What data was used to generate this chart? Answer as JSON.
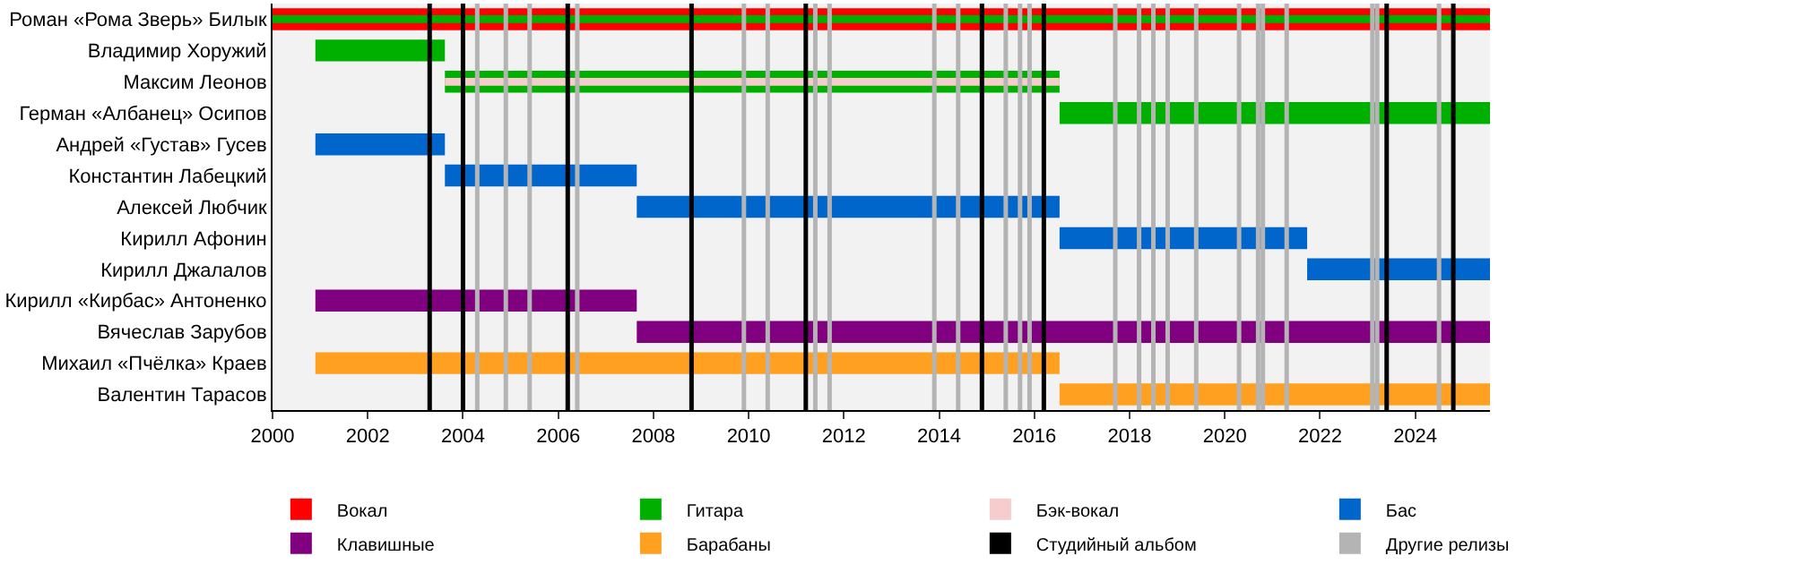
{
  "chart_data": {
    "type": "bar",
    "orientation": "horizontal",
    "categories": [
      "Роман «Рома Зверь» Билык",
      "Владимир Хоружий",
      "Максим Леонов",
      "Герман «Албанец» Осипов",
      "Андрей «Густав» Гусев",
      "Константин Лабецкий",
      "Алексей Любчик",
      "Кирилл Афонин",
      "Кирилл Джалалов",
      "Кирилл «Кирбас» Антоненко",
      "Вячеслав Зарубов",
      "Михаил «Пчёлка» Краев",
      "Валентин Тарасов"
    ],
    "series": [
      {
        "name": "Вокал",
        "color": "#ff0000",
        "base": [
          2000,
          null,
          null,
          null,
          null,
          null,
          null,
          null,
          null,
          null,
          null,
          null,
          null
        ],
        "values": [
          25.57,
          null,
          null,
          null,
          null,
          null,
          null,
          null,
          null,
          null,
          null,
          null,
          null
        ]
      },
      {
        "name": "Гитара",
        "color": "#00b000",
        "base": [
          2000,
          2000.9,
          2003.62,
          2016.53,
          null,
          null,
          null,
          null,
          null,
          null,
          null,
          null,
          null
        ],
        "values": [
          25.57,
          2.72,
          12.91,
          9.04,
          null,
          null,
          null,
          null,
          null,
          null,
          null,
          null,
          null
        ]
      },
      {
        "name": "Бэк-вокал",
        "color": "#f6cccc",
        "base": [
          null,
          null,
          2003.62,
          null,
          null,
          null,
          null,
          null,
          null,
          null,
          null,
          null,
          null
        ],
        "values": [
          null,
          null,
          12.91,
          null,
          null,
          null,
          null,
          null,
          null,
          null,
          null,
          null,
          null
        ]
      },
      {
        "name": "Бас",
        "color": "#0066cc",
        "base": [
          null,
          null,
          null,
          null,
          2000.9,
          2003.62,
          2007.65,
          2016.53,
          2021.73,
          null,
          null,
          null,
          null
        ],
        "values": [
          null,
          null,
          null,
          null,
          2.72,
          4.03,
          8.88,
          5.2,
          3.84,
          null,
          null,
          null,
          null
        ]
      },
      {
        "name": "Клавишные",
        "color": "#800080",
        "base": [
          null,
          null,
          null,
          null,
          null,
          null,
          null,
          null,
          null,
          2000.9,
          2007.65,
          null,
          null
        ],
        "values": [
          null,
          null,
          null,
          null,
          null,
          null,
          null,
          null,
          null,
          6.75,
          17.92,
          null,
          null
        ]
      },
      {
        "name": "Барабаны",
        "color": "#ffa020",
        "base": [
          null,
          null,
          null,
          null,
          null,
          null,
          null,
          null,
          null,
          null,
          null,
          2000.9,
          2016.53
        ],
        "values": [
          null,
          null,
          null,
          null,
          null,
          null,
          null,
          null,
          null,
          null,
          null,
          15.63,
          9.04
        ]
      }
    ],
    "ref_lines": [
      {
        "axis": "x",
        "value": 2003.3,
        "label": "Студийный альбом",
        "color": "#000000"
      },
      {
        "axis": "x",
        "value": 2004.0,
        "color": "#000000"
      },
      {
        "axis": "x",
        "value": 2006.2,
        "color": "#000000"
      },
      {
        "axis": "x",
        "value": 2008.8,
        "color": "#000000"
      },
      {
        "axis": "x",
        "value": 2011.2,
        "color": "#000000"
      },
      {
        "axis": "x",
        "value": 2014.9,
        "color": "#000000"
      },
      {
        "axis": "x",
        "value": 2016.2,
        "color": "#000000"
      },
      {
        "axis": "x",
        "value": 2023.4,
        "color": "#000000"
      },
      {
        "axis": "x",
        "value": 2024.8,
        "color": "#000000"
      },
      {
        "axis": "x",
        "value": 2004.3,
        "label": "Другие релизы",
        "color": "#b4b4b4"
      },
      {
        "axis": "x",
        "value": 2004.9,
        "color": "#b4b4b4"
      },
      {
        "axis": "x",
        "value": 2005.4,
        "color": "#b4b4b4"
      },
      {
        "axis": "x",
        "value": 2006.4,
        "color": "#b4b4b4"
      },
      {
        "axis": "x",
        "value": 2009.9,
        "color": "#b4b4b4"
      },
      {
        "axis": "x",
        "value": 2010.4,
        "color": "#b4b4b4"
      },
      {
        "axis": "x",
        "value": 2011.4,
        "color": "#b4b4b4"
      },
      {
        "axis": "x",
        "value": 2011.7,
        "color": "#b4b4b4"
      },
      {
        "axis": "x",
        "value": 2013.9,
        "color": "#b4b4b4"
      },
      {
        "axis": "x",
        "value": 2014.4,
        "color": "#b4b4b4"
      },
      {
        "axis": "x",
        "value": 2015.4,
        "color": "#b4b4b4"
      },
      {
        "axis": "x",
        "value": 2015.7,
        "color": "#b4b4b4"
      },
      {
        "axis": "x",
        "value": 2015.9,
        "color": "#b4b4b4"
      },
      {
        "axis": "x",
        "value": 2017.7,
        "color": "#b4b4b4"
      },
      {
        "axis": "x",
        "value": 2018.2,
        "color": "#b4b4b4"
      },
      {
        "axis": "x",
        "value": 2018.5,
        "color": "#b4b4b4"
      },
      {
        "axis": "x",
        "value": 2018.8,
        "color": "#b4b4b4"
      },
      {
        "axis": "x",
        "value": 2019.4,
        "color": "#b4b4b4"
      },
      {
        "axis": "x",
        "value": 2020.3,
        "color": "#b4b4b4"
      },
      {
        "axis": "x",
        "value": 2020.7,
        "color": "#b4b4b4"
      },
      {
        "axis": "x",
        "value": 2020.8,
        "color": "#b4b4b4"
      },
      {
        "axis": "x",
        "value": 2021.3,
        "color": "#b4b4b4"
      },
      {
        "axis": "x",
        "value": 2023.1,
        "color": "#b4b4b4"
      },
      {
        "axis": "x",
        "value": 2023.2,
        "color": "#b4b4b4"
      },
      {
        "axis": "x",
        "value": 2024.5,
        "color": "#b4b4b4"
      }
    ],
    "xlim": [
      2000,
      2025.57
    ],
    "xticks": [
      2000,
      2002,
      2004,
      2006,
      2008,
      2010,
      2012,
      2014,
      2016,
      2018,
      2020,
      2022,
      2024
    ],
    "legend": "bottom"
  }
}
